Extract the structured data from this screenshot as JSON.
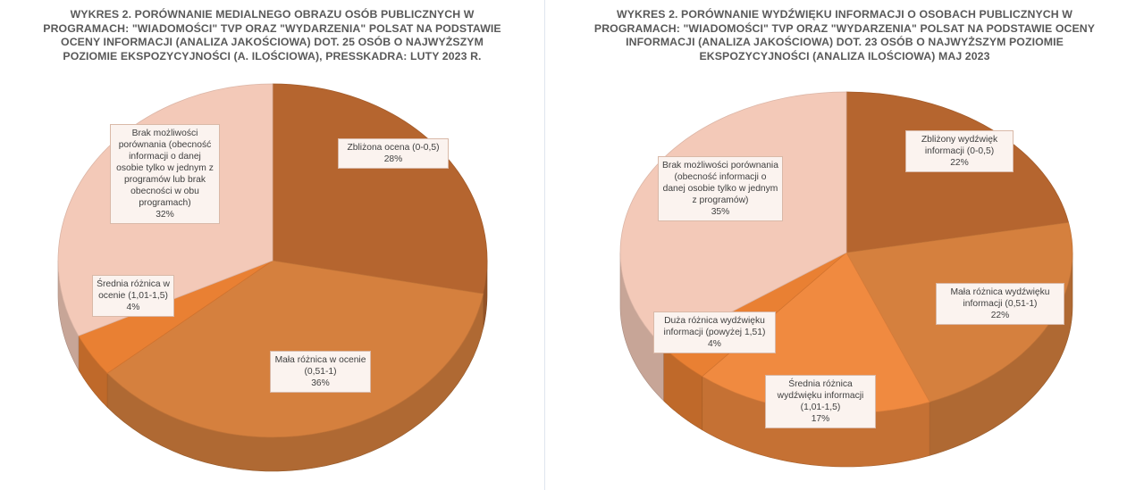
{
  "chart_data": [
    {
      "type": "pie",
      "title": "WYKRES 2. PORÓWNANIE MEDIALNEGO OBRAZU OSÓB PUBLICZNYCH W PROGRAMACH: \"WIADOMOŚCI\" TVP ORAZ \"WYDARZENIA\" POLSAT NA PODSTAWIE OCENY INFORMACJI (ANALIZA JAKOŚCIOWA) DOT. 25 OSÓB O NAJWYŻSZYM POZIOMIE EKSPOZYCYJNOŚCI (A. ILOŚCIOWA), PRESSKADRA: LUTY 2023 R.",
      "style": "3d",
      "slices": [
        {
          "label": "Zbliżona ocena (0-0,5)",
          "value": 28,
          "value_label": "28%",
          "color": "#b5652f"
        },
        {
          "label": "Mała różnica w ocenie (0,51-1)",
          "value": 36,
          "value_label": "36%",
          "color": "#d5803e"
        },
        {
          "label": "Średnia różnica w ocenie (1,01-1,5)",
          "value": 4,
          "value_label": "4%",
          "color": "#e98033"
        },
        {
          "label": "Brak możliwości porównania (obecność informacji o danej osobie tylko w jednym z programów lub brak obecności w obu programach)",
          "value": 32,
          "value_label": "32%",
          "color": "#f3c9b8"
        }
      ]
    },
    {
      "type": "pie",
      "title": "WYKRES 2. PORÓWNANIE WYDŹWIĘKU INFORMACJI O OSOBACH PUBLICZNYCH W PROGRAMACH: \"WIADOMOŚCI\" TVP ORAZ \"WYDARZENIA\" POLSAT NA PODSTAWIE OCENY INFORMACJI (ANALIZA JAKOŚCIOWA) DOT. 23 OSÓB O NAJWYŻSZYM POZIOMIE EKSPOZYCYJNOŚCI (ANALIZA ILOŚCIOWA) MAJ 2023",
      "style": "3d",
      "slices": [
        {
          "label": "Zbliżony wydźwięk informacji (0-0,5)",
          "value": 22,
          "value_label": "22%",
          "color": "#b5652f"
        },
        {
          "label": "Mała różnica wydźwięku informacji (0,51-1)",
          "value": 22,
          "value_label": "22%",
          "color": "#d5803e"
        },
        {
          "label": "Średnia różnica wydźwięku informacji (1,01-1,5)",
          "value": 17,
          "value_label": "17%",
          "color": "#f08a40"
        },
        {
          "label": "Duża różnica wydźwięku informacji (powyżej 1,51)",
          "value": 4,
          "value_label": "4%",
          "color": "#e98033"
        },
        {
          "label": "Brak możliwości porównania (obecność informacji o danej osobie tylko w jednym z programów)",
          "value": 35,
          "value_label": "35%",
          "color": "#f3c9b8"
        }
      ]
    }
  ]
}
